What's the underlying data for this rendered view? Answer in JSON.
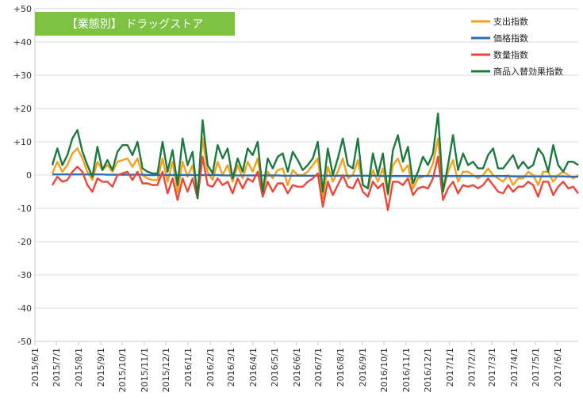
{
  "chart_data": {
    "type": "line",
    "title": "【業態別】 ドラッグストア",
    "xlabel": "",
    "ylabel": "",
    "ylim": [
      -50,
      50
    ],
    "y_ticks": [
      "+50",
      "+40",
      "+30",
      "+20",
      "+10",
      "0",
      "-10",
      "-20",
      "-30",
      "-40",
      "-50"
    ],
    "x_tick_labels": [
      "2015/6/1",
      "2015/7/1",
      "2015/8/1",
      "2015/9/1",
      "2015/10/1",
      "2015/11/1",
      "2015/12/1",
      "2016/1/1",
      "2016/2/1",
      "2016/3/1",
      "2016/4/1",
      "2016/5/1",
      "2016/6/1",
      "2016/7/1",
      "2016/8/1",
      "2016/9/1",
      "2016/10/1",
      "2016/11/1",
      "2016/12/1",
      "2017/1/1",
      "2017/2/1",
      "2017/3/1",
      "2017/4/1",
      "2017/5/1",
      "2017/6/1"
    ],
    "x_range": [
      "2015/6/1",
      "2017/6/30"
    ],
    "grid": true,
    "legend_position": "top-right",
    "title_color": "#7dc242",
    "series": [
      {
        "name": "支出指数",
        "color": "#f5a01a",
        "values": [
          0.5,
          4,
          1,
          3,
          6.5,
          8,
          5,
          1,
          -1.5,
          4,
          1.5,
          3,
          1,
          4,
          4.5,
          5,
          2.5,
          5,
          0,
          -1,
          -1.5,
          -1.5,
          5,
          -2,
          4,
          -5,
          4,
          -0.5,
          3,
          -5,
          11,
          1,
          -1.5,
          4,
          0,
          3,
          -2,
          3,
          -1,
          4,
          1,
          5,
          -5,
          1,
          -1,
          1.5,
          2,
          -3,
          1.5,
          0,
          0,
          1,
          3,
          5,
          -7,
          2.5,
          -2,
          1,
          5,
          -1,
          0,
          4.5,
          -3,
          -4,
          1.5,
          -2,
          2,
          -6,
          3,
          5,
          1,
          3,
          -4,
          -1,
          -0.5,
          0,
          3.5,
          11,
          -5,
          1,
          4.5,
          -2,
          1,
          1,
          0,
          -1,
          0,
          2,
          0,
          -1,
          -2,
          0,
          -3,
          -1,
          -1,
          1,
          0,
          -3,
          1,
          1,
          -2,
          0,
          1,
          0,
          -1,
          0
        ]
      },
      {
        "name": "価格指数",
        "color": "#2e6db4",
        "values": [
          0.2,
          0.2,
          0.2,
          0.2,
          0.2,
          0.2,
          0.2,
          0.2,
          0.2,
          0.2,
          0.2,
          0.1,
          0.1,
          0.1,
          0.1,
          0.1,
          0.1,
          0.1,
          0.1,
          0,
          0,
          0,
          0,
          0,
          0,
          0,
          0,
          0,
          0,
          0,
          0,
          0,
          0,
          0,
          -0.1,
          -0.1,
          -0.1,
          -0.1,
          -0.1,
          -0.1,
          -0.1,
          -0.1,
          -0.1,
          -0.1,
          -0.1,
          -0.1,
          -0.2,
          -0.2,
          -0.2,
          -0.2,
          -0.2,
          -0.2,
          -0.2,
          -0.2,
          -0.2,
          -0.2,
          -0.2,
          -0.2,
          -0.2,
          -0.2,
          -0.2,
          -0.2,
          -0.2,
          -0.2,
          -0.2,
          -0.2,
          -0.3,
          -0.3,
          -0.3,
          -0.3,
          -0.3,
          -0.3,
          -0.3,
          -0.3,
          -0.3,
          -0.3,
          -0.3,
          -0.3,
          -0.3,
          -0.3,
          -0.3,
          -0.3,
          -0.3,
          -0.3,
          -0.3,
          -0.3,
          -0.3,
          -0.3,
          -0.3,
          -0.3,
          -0.3,
          -0.3,
          -0.4,
          -0.4,
          -0.4,
          -0.4,
          -0.4,
          -0.4,
          -0.4,
          -0.4,
          -0.4,
          -0.4,
          -0.4,
          -0.5,
          -0.5,
          -0.5
        ]
      },
      {
        "name": "数量指数",
        "color": "#e8473a",
        "values": [
          -3,
          -0.5,
          -2,
          -1.5,
          1,
          2.5,
          1,
          -3,
          -5,
          -1,
          -2,
          -2,
          -3.5,
          0,
          0.5,
          1,
          -1.5,
          1,
          -2.5,
          -2.5,
          -3,
          -3,
          1,
          -5.5,
          -1,
          -7.5,
          -1,
          -5,
          -1,
          -7,
          5.5,
          -3,
          -3.5,
          -1,
          -3,
          -2,
          -5.5,
          -1,
          -4,
          -1,
          -2,
          1,
          -6.5,
          -2,
          -5,
          -2.5,
          -2.5,
          -5.5,
          -3,
          -3.5,
          -3.5,
          -2,
          -1,
          0.5,
          -9.5,
          -2,
          -6,
          -3,
          0,
          -3.5,
          -4,
          -1,
          -5,
          -6.5,
          -2,
          -4,
          -2.5,
          -10.5,
          -2,
          -2,
          -3,
          -1,
          -6,
          -4,
          -3.5,
          -4,
          -1,
          5.5,
          -7.5,
          -4,
          -2,
          -5.5,
          -3,
          -3.5,
          -3,
          -4,
          -3,
          -1,
          -3,
          -5,
          -5.5,
          -3,
          -5,
          -3.5,
          -3.5,
          -2,
          -3,
          -6.5,
          -2,
          -2,
          -6,
          -3.5,
          -2,
          -4,
          -3.5,
          -5.5
        ]
      },
      {
        "name": "商品入替効果指数",
        "color": "#1d7a3f",
        "values": [
          3,
          8,
          3,
          6,
          11,
          13.5,
          7,
          3,
          -0.5,
          8.5,
          1.5,
          4.5,
          1.5,
          7,
          9,
          9,
          6,
          10,
          2,
          1,
          0.5,
          0.5,
          10,
          1,
          7.5,
          -3,
          11,
          3,
          7,
          -7,
          16.5,
          3,
          0.5,
          9,
          5,
          8,
          -1,
          5,
          1,
          8,
          6,
          10,
          -5,
          5,
          2,
          5.5,
          6.5,
          1,
          7,
          4.5,
          1.5,
          3,
          5,
          10,
          -5,
          8,
          0,
          5,
          11,
          3,
          2,
          11,
          -3,
          -4,
          6.5,
          0,
          6.5,
          -5.5,
          7.5,
          12,
          4,
          8.5,
          -2.5,
          1,
          5.5,
          3,
          6.5,
          18.5,
          -5,
          3,
          12,
          1.5,
          6.5,
          3,
          4,
          2,
          2,
          6,
          8,
          2,
          2,
          4,
          6,
          2,
          4,
          2,
          3,
          8,
          6,
          1,
          9,
          3,
          1,
          4,
          4,
          3
        ]
      }
    ]
  }
}
